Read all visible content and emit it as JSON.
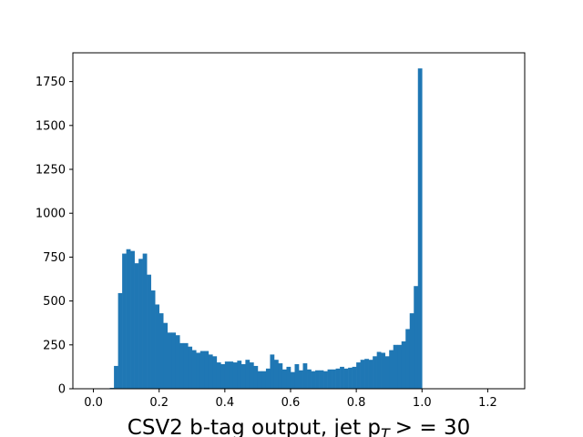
{
  "chart_data": {
    "type": "bar",
    "title": "",
    "xlabel_main": "CSV2 b-tag output, jet p",
    "xlabel_sub": "T",
    "xlabel_tail": "> = 30",
    "ylabel": "",
    "xlim": [
      -0.0625,
      1.3125
    ],
    "ylim": [
      0,
      1914
    ],
    "bin_start": 0.0,
    "bin_width": 0.0125,
    "bar_color": "#1f77b4",
    "xticks": [
      0.0,
      0.2,
      0.4,
      0.6,
      0.8,
      1.0,
      1.2
    ],
    "xtick_labels": [
      "0.0",
      "0.2",
      "0.4",
      "0.6",
      "0.8",
      "1.0",
      "1.2"
    ],
    "yticks": [
      0,
      250,
      500,
      750,
      1000,
      1250,
      1500,
      1750
    ],
    "ytick_labels": [
      "0",
      "250",
      "500",
      "750",
      "1000",
      "1250",
      "1500",
      "1750"
    ],
    "values": [
      0,
      0,
      0,
      0,
      5,
      130,
      545,
      770,
      795,
      785,
      715,
      740,
      770,
      650,
      560,
      480,
      430,
      375,
      320,
      320,
      305,
      260,
      260,
      240,
      220,
      205,
      215,
      215,
      195,
      185,
      150,
      140,
      155,
      155,
      150,
      160,
      140,
      165,
      150,
      130,
      100,
      100,
      115,
      195,
      165,
      145,
      110,
      125,
      95,
      140,
      105,
      145,
      110,
      100,
      105,
      105,
      100,
      110,
      110,
      115,
      125,
      115,
      120,
      125,
      150,
      165,
      170,
      165,
      185,
      210,
      205,
      185,
      220,
      250,
      250,
      270,
      340,
      430,
      585,
      1825
    ]
  }
}
